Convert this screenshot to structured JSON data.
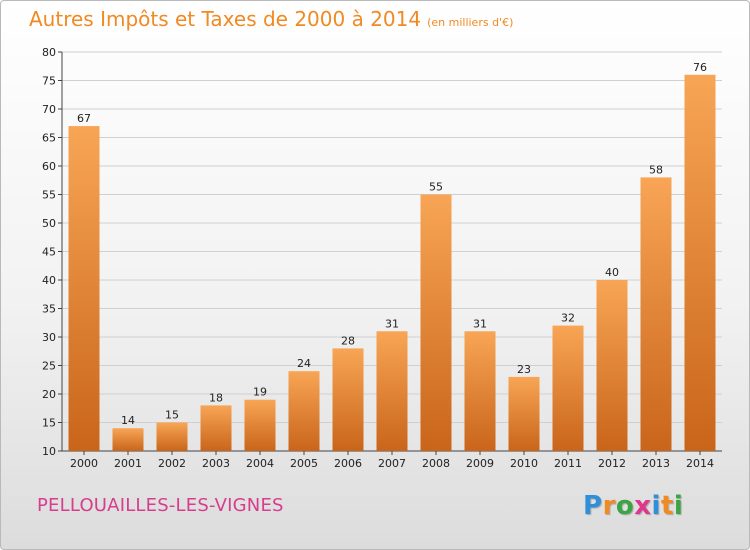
{
  "title": {
    "main": "Autres Impôts et Taxes de 2000 à 2014",
    "unit": "(en milliers d'€)"
  },
  "commune": "PELLOUAILLES-LES-VIGNES",
  "logo": {
    "text": "Proxiti",
    "letters": [
      "P",
      "r",
      "o",
      "x",
      "i",
      "t",
      "i"
    ],
    "colors": [
      "#2f8fd8",
      "#f08a23",
      "#3aa542",
      "#e0368c",
      "#2f8fd8",
      "#f08a23",
      "#3aa542"
    ]
  },
  "colors": {
    "title": "#f08a23",
    "commune": "#d83c8f",
    "bar_top": "#f8a556",
    "bar_bottom": "#c9651a"
  },
  "chart_data": {
    "type": "bar",
    "title": "Autres Impôts et Taxes de 2000 à 2014",
    "subtitle": "(en milliers d'€)",
    "xlabel": "",
    "ylabel": "",
    "categories": [
      "2000",
      "2001",
      "2002",
      "2003",
      "2004",
      "2005",
      "2006",
      "2007",
      "2008",
      "2009",
      "2010",
      "2011",
      "2012",
      "2013",
      "2014"
    ],
    "values": [
      67,
      14,
      15,
      18,
      19,
      24,
      28,
      31,
      55,
      31,
      23,
      32,
      40,
      58,
      76
    ],
    "ylim": [
      10,
      80
    ],
    "yticks": [
      10,
      15,
      20,
      25,
      30,
      35,
      40,
      45,
      50,
      55,
      60,
      65,
      70,
      75,
      80
    ],
    "grid": true,
    "data_labels": true
  }
}
